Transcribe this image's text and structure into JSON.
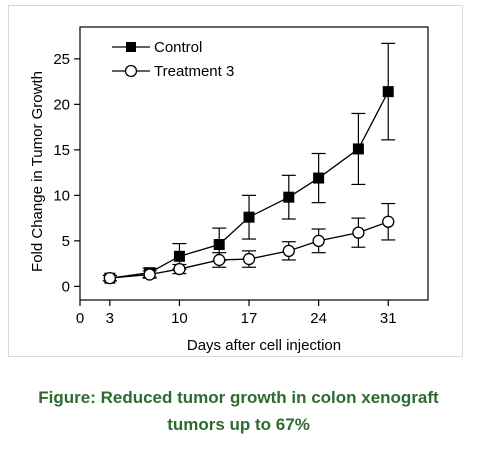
{
  "caption": {
    "line1": "Figure: Reduced tumor growth in colon xenograft",
    "line2": "tumors up to 67%"
  },
  "chart_data": {
    "type": "line",
    "title": "",
    "xlabel": "Days after cell injection",
    "ylabel": "Fold Change in Tumor Growth",
    "xlim": [
      0,
      35
    ],
    "ylim": [
      -1.5,
      28.5
    ],
    "xticks": [
      0,
      3,
      10,
      17,
      24,
      31
    ],
    "yticks": [
      0,
      5,
      10,
      15,
      20,
      25
    ],
    "grid": false,
    "legend_position": "top-left",
    "series": [
      {
        "name": "Control",
        "marker": "filled-square",
        "color": "#000000",
        "x": [
          3,
          7,
          10,
          14,
          17,
          21,
          24,
          28,
          31
        ],
        "y": [
          0.9,
          1.5,
          3.3,
          4.6,
          7.6,
          9.8,
          11.9,
          15.1,
          21.4
        ],
        "err": [
          0.3,
          0.5,
          1.4,
          1.8,
          2.4,
          2.4,
          2.7,
          3.9,
          5.3
        ]
      },
      {
        "name": "Treatment 3",
        "marker": "open-circle",
        "color": "#000000",
        "x": [
          3,
          7,
          10,
          14,
          17,
          21,
          24,
          28,
          31
        ],
        "y": [
          0.9,
          1.3,
          1.9,
          2.9,
          3.0,
          3.9,
          5.0,
          5.9,
          7.1
        ],
        "err": [
          0.3,
          0.4,
          0.5,
          0.8,
          0.9,
          1.0,
          1.3,
          1.6,
          2.0
        ]
      }
    ]
  }
}
